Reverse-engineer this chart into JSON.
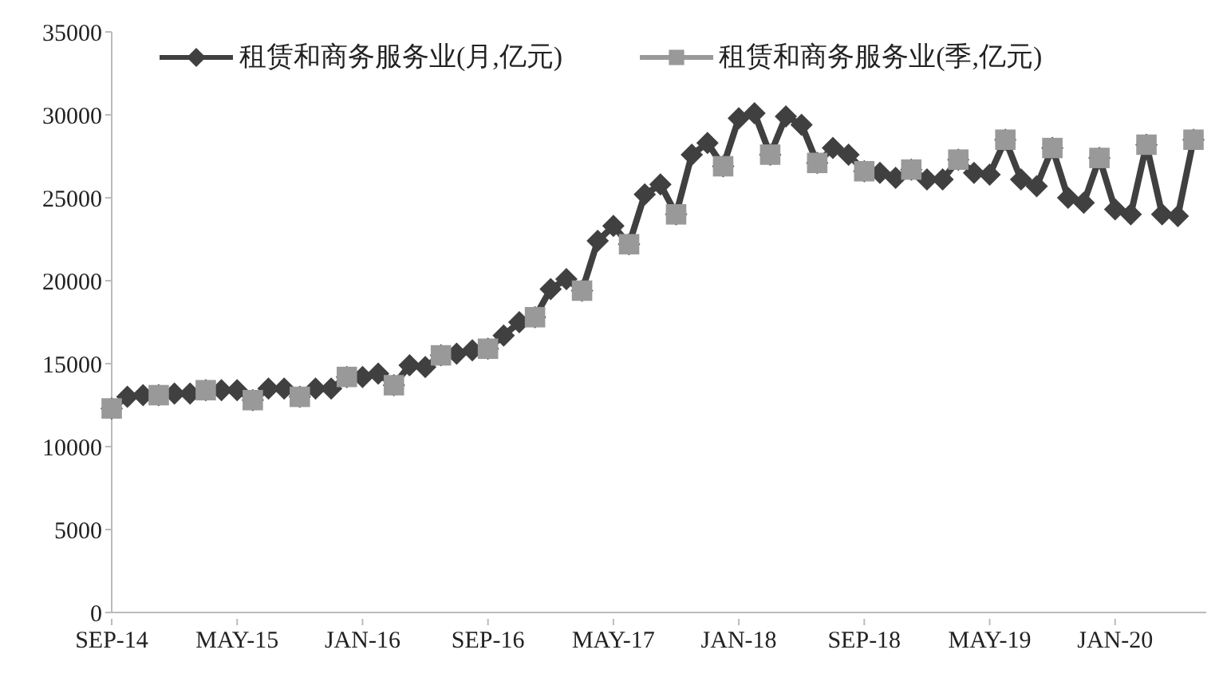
{
  "chart_data": {
    "type": "line",
    "categories": [
      "SEP-14",
      null,
      null,
      null,
      null,
      null,
      null,
      null,
      "MAY-15",
      null,
      null,
      null,
      null,
      null,
      null,
      null,
      "JAN-16",
      null,
      null,
      null,
      null,
      null,
      null,
      null,
      "SEP-16",
      null,
      null,
      null,
      null,
      null,
      null,
      null,
      "MAY-17",
      null,
      null,
      null,
      null,
      null,
      null,
      null,
      "JAN-18",
      null,
      null,
      null,
      null,
      null,
      null,
      null,
      "SEP-18",
      null,
      null,
      null,
      null,
      null,
      null,
      null,
      "MAY-19",
      null,
      null,
      null,
      null,
      null,
      null,
      null,
      "JAN-20",
      null,
      null,
      null,
      null,
      null
    ],
    "series": [
      {
        "name": "租赁和商务服务业(月,亿元)",
        "color": "#404040",
        "marker": "diamond",
        "values": [
          12300,
          13000,
          13100,
          13100,
          13200,
          13200,
          13400,
          13400,
          13400,
          12800,
          13500,
          13500,
          13000,
          13500,
          13500,
          14200,
          14200,
          14400,
          13700,
          14900,
          14800,
          15500,
          15600,
          15800,
          15900,
          16700,
          17500,
          17800,
          19500,
          20100,
          19400,
          22400,
          23300,
          22200,
          25200,
          25800,
          24000,
          27600,
          28300,
          26900,
          29800,
          30100,
          27600,
          29900,
          29400,
          27100,
          28000,
          27600,
          26600,
          26500,
          26200,
          26700,
          26100,
          26100,
          27300,
          26500,
          26400,
          28500,
          26100,
          25700,
          28000,
          25000,
          24700,
          27400,
          24300,
          24000,
          28200,
          24000,
          23900,
          28500
        ]
      },
      {
        "name": "租赁和商务服务业(季,亿元)",
        "color": "#999999",
        "marker": "square",
        "values": [
          12300,
          null,
          null,
          13100,
          null,
          null,
          13400,
          null,
          null,
          12800,
          null,
          null,
          13000,
          null,
          null,
          14200,
          null,
          null,
          13700,
          null,
          null,
          15500,
          null,
          null,
          15900,
          null,
          null,
          17800,
          null,
          null,
          19400,
          null,
          null,
          22200,
          null,
          null,
          24000,
          null,
          null,
          26900,
          null,
          null,
          27600,
          null,
          null,
          27100,
          null,
          null,
          26600,
          null,
          null,
          26700,
          null,
          null,
          27300,
          null,
          null,
          28500,
          null,
          null,
          28000,
          null,
          null,
          27400,
          null,
          null,
          28200,
          null,
          null,
          28500
        ]
      }
    ],
    "ylim": [
      0,
      35000
    ],
    "yticks": [
      0,
      5000,
      10000,
      15000,
      20000,
      25000,
      30000,
      35000
    ],
    "grid": false,
    "legend": "top",
    "line_style": "solid"
  }
}
